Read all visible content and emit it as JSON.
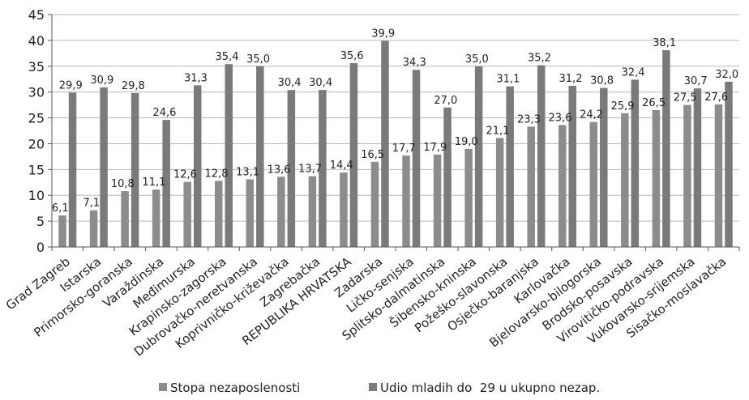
{
  "chart_data": {
    "type": "bar",
    "title": "",
    "xlabel": "",
    "ylabel": "",
    "ylim": [
      0,
      45
    ],
    "yticks": [
      0,
      5,
      10,
      15,
      20,
      25,
      30,
      35,
      40,
      45
    ],
    "grid": true,
    "legend_position": "bottom",
    "categories": [
      "Grad Zagreb",
      "Istarska",
      "Primorsko-goranska",
      "Varaždinska",
      "Međimurska",
      "Krapinsko-zagorska",
      "Dubrovačko-neretvanska",
      "Koprivničko-križevačka",
      "Zagrebačka",
      "REPUBLIKA HRVATSKA",
      "Zadarska",
      "Ličko-senjska",
      "Splitsko-dalmatinska",
      "Šibensko-kninska",
      "Požeško-slavonska",
      "Osječko-baranjska",
      "Karlovačka",
      "Bjelovarsko-bilogorska",
      "Brodsko-posavska",
      "Virovitičko-podravska",
      "Vukovarsko-srijemska",
      "Sisačko-moslavačka"
    ],
    "series": [
      {
        "name": "Stopa nezaposlenosti",
        "color": "#8c8c8c",
        "values": [
          6.1,
          7.1,
          10.8,
          11.1,
          12.6,
          12.8,
          13.1,
          13.6,
          13.7,
          14.4,
          16.5,
          17.7,
          17.9,
          19.0,
          21.1,
          23.3,
          23.6,
          24.2,
          25.9,
          26.5,
          27.5,
          27.6
        ],
        "labels": [
          "6,1",
          "7,1",
          "10,8",
          "11,1",
          "12,6",
          "12,8",
          "13,1",
          "13,6",
          "13,7",
          "14,4",
          "16,5",
          "17,7",
          "17,9",
          "19,0",
          "21,1",
          "23,3",
          "23,6",
          "24,2",
          "25,9",
          "26,5",
          "27,5",
          "27,6"
        ]
      },
      {
        "name": "Udio mladih do  29 u ukupno nezap.",
        "color": "#7a7a7a",
        "values": [
          29.9,
          30.9,
          29.8,
          24.6,
          31.3,
          35.4,
          35.0,
          30.4,
          30.4,
          35.6,
          39.9,
          34.3,
          27.0,
          35.0,
          31.1,
          35.2,
          31.2,
          30.8,
          32.4,
          38.1,
          30.7,
          32.0
        ],
        "labels": [
          "29,9",
          "30,9",
          "29,8",
          "24,6",
          "31,3",
          "35,4",
          "35,0",
          "30,4",
          "30,4",
          "35,6",
          "39,9",
          "34,3",
          "27,0",
          "35,0",
          "31,1",
          "35,2",
          "31,2",
          "30,8",
          "32,4",
          "38,1",
          "30,7",
          "32,0"
        ]
      }
    ]
  }
}
